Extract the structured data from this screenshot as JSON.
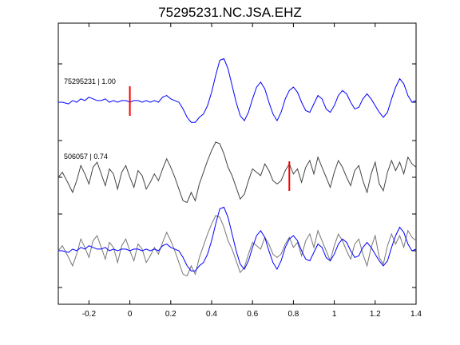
{
  "chart_data": {
    "type": "line",
    "title": "75295231.NC.JSA.EHZ",
    "xlabel": "",
    "ylabel": "",
    "xlim": [
      -0.35,
      1.4
    ],
    "xticks": [
      -0.2,
      0,
      0.2,
      0.4,
      0.6,
      0.8,
      1,
      1.2,
      1.4
    ],
    "xtick_labels": [
      "-0.2",
      "0",
      "0.2",
      "0.4",
      "0.6",
      "0.8",
      "1",
      "1.2",
      "1.4"
    ],
    "grid": false,
    "colors": {
      "primary": "#0000ff",
      "secondary": "#444444",
      "pick": "#ff0000"
    },
    "panels": [
      {
        "label": "75295231 | 1.00",
        "series": "primary",
        "pick_time": 0.0
      },
      {
        "label": "506057 | 0.74",
        "series": "secondary",
        "pick_time": 0.78
      },
      {
        "label": "",
        "series": "overlay"
      }
    ],
    "series": [
      {
        "id": "primary",
        "x": [
          -0.35,
          -0.33,
          -0.3,
          -0.28,
          -0.26,
          -0.24,
          -0.22,
          -0.2,
          -0.18,
          -0.16,
          -0.14,
          -0.12,
          -0.1,
          -0.08,
          -0.06,
          -0.04,
          -0.02,
          0.0,
          0.02,
          0.04,
          0.06,
          0.08,
          0.1,
          0.12,
          0.14,
          0.16,
          0.18,
          0.2,
          0.22,
          0.24,
          0.26,
          0.28,
          0.3,
          0.32,
          0.34,
          0.36,
          0.38,
          0.4,
          0.42,
          0.44,
          0.46,
          0.48,
          0.5,
          0.52,
          0.54,
          0.56,
          0.58,
          0.6,
          0.62,
          0.64,
          0.66,
          0.68,
          0.7,
          0.72,
          0.74,
          0.76,
          0.78,
          0.8,
          0.82,
          0.84,
          0.86,
          0.88,
          0.9,
          0.92,
          0.94,
          0.96,
          0.98,
          1.0,
          1.02,
          1.04,
          1.06,
          1.08,
          1.1,
          1.12,
          1.14,
          1.16,
          1.18,
          1.2,
          1.22,
          1.24,
          1.26,
          1.28,
          1.3,
          1.32,
          1.34,
          1.36,
          1.38,
          1.4
        ],
        "y": [
          0.0,
          0.0,
          -0.05,
          0.05,
          0.0,
          0.1,
          0.05,
          0.15,
          0.1,
          0.05,
          0.05,
          0.1,
          0.0,
          0.05,
          0.0,
          0.05,
          0.05,
          0.0,
          0.05,
          0.05,
          0.0,
          0.05,
          0.0,
          0.05,
          0.0,
          0.15,
          0.2,
          0.1,
          0.05,
          0.0,
          -0.2,
          -0.45,
          -0.6,
          -0.6,
          -0.45,
          -0.35,
          -0.1,
          0.3,
          0.8,
          1.25,
          1.3,
          1.0,
          0.5,
          0.0,
          -0.4,
          -0.55,
          -0.3,
          0.1,
          0.45,
          0.6,
          0.4,
          0.0,
          -0.35,
          -0.55,
          -0.3,
          0.1,
          0.35,
          0.45,
          0.3,
          0.0,
          -0.25,
          -0.3,
          -0.05,
          0.2,
          0.1,
          -0.2,
          -0.3,
          -0.1,
          0.2,
          0.35,
          0.25,
          0.0,
          -0.2,
          -0.15,
          0.1,
          0.25,
          0.1,
          -0.1,
          -0.3,
          -0.45,
          -0.3,
          0.1,
          0.45,
          0.7,
          0.55,
          0.2,
          0.0,
          0.05
        ]
      },
      {
        "id": "secondary",
        "x": [
          -0.35,
          -0.33,
          -0.3,
          -0.28,
          -0.26,
          -0.24,
          -0.22,
          -0.2,
          -0.18,
          -0.16,
          -0.14,
          -0.12,
          -0.1,
          -0.08,
          -0.06,
          -0.04,
          -0.02,
          0.0,
          0.02,
          0.04,
          0.06,
          0.08,
          0.1,
          0.12,
          0.14,
          0.16,
          0.18,
          0.2,
          0.22,
          0.24,
          0.26,
          0.28,
          0.3,
          0.32,
          0.34,
          0.36,
          0.38,
          0.4,
          0.42,
          0.44,
          0.46,
          0.48,
          0.5,
          0.52,
          0.54,
          0.56,
          0.58,
          0.6,
          0.62,
          0.64,
          0.66,
          0.68,
          0.7,
          0.72,
          0.74,
          0.76,
          0.78,
          0.8,
          0.82,
          0.84,
          0.86,
          0.88,
          0.9,
          0.92,
          0.94,
          0.96,
          0.98,
          1.0,
          1.02,
          1.04,
          1.06,
          1.08,
          1.1,
          1.12,
          1.14,
          1.16,
          1.18,
          1.2,
          1.22,
          1.24,
          1.26,
          1.28,
          1.3,
          1.32,
          1.34,
          1.36,
          1.38,
          1.4
        ],
        "y": [
          0.0,
          0.15,
          -0.2,
          -0.45,
          -0.1,
          0.35,
          0.1,
          -0.2,
          0.3,
          0.45,
          0.1,
          -0.25,
          0.25,
          0.1,
          -0.35,
          0.15,
          0.35,
          0.0,
          -0.3,
          0.2,
          0.05,
          -0.35,
          -0.15,
          0.1,
          -0.1,
          0.25,
          0.55,
          0.3,
          0.0,
          -0.35,
          -0.7,
          -0.75,
          -0.45,
          -0.7,
          -0.2,
          0.15,
          0.5,
          0.8,
          1.05,
          1.0,
          0.7,
          0.3,
          0.05,
          -0.3,
          -0.65,
          -0.5,
          -0.1,
          0.25,
          0.15,
          0.05,
          0.4,
          0.2,
          -0.1,
          -0.2,
          -0.1,
          0.2,
          0.4,
          0.1,
          0.25,
          -0.15,
          0.3,
          0.5,
          0.1,
          0.6,
          0.3,
          0.0,
          -0.3,
          0.15,
          0.5,
          0.3,
          0.0,
          -0.25,
          0.2,
          0.35,
          -0.1,
          -0.45,
          0.1,
          0.45,
          -0.2,
          -0.4,
          0.15,
          0.5,
          0.2,
          0.45,
          0.1,
          0.6,
          0.4,
          0.3
        ]
      }
    ]
  }
}
